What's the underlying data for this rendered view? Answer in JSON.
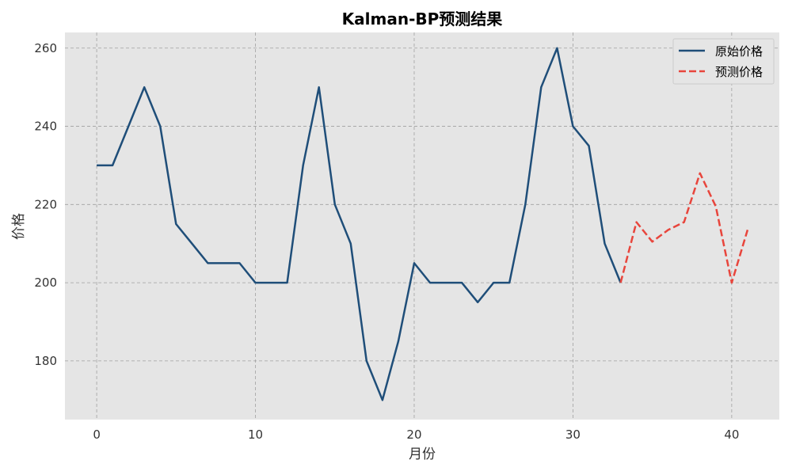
{
  "chart_data": {
    "type": "line",
    "title": "Kalman-BP预测结果",
    "xlabel": "月份",
    "ylabel": "价格",
    "xlim": [
      -2,
      43
    ],
    "ylim": [
      165,
      264
    ],
    "xticks": [
      0,
      10,
      20,
      30,
      40
    ],
    "yticks": [
      180,
      200,
      220,
      240,
      260
    ],
    "grid": true,
    "legend_position": "top-right",
    "series": [
      {
        "name": "原始价格",
        "color": "#1f4e79",
        "style": "solid",
        "x": [
          0,
          1,
          2,
          3,
          4,
          5,
          6,
          7,
          8,
          9,
          10,
          11,
          12,
          13,
          14,
          15,
          16,
          17,
          18,
          19,
          20,
          21,
          22,
          23,
          24,
          25,
          26,
          27,
          28,
          29,
          30,
          31,
          32,
          33
        ],
        "values": [
          230,
          230,
          240,
          250,
          240,
          215,
          210,
          205,
          205,
          205,
          200,
          200,
          200,
          230,
          250,
          220,
          210,
          180,
          170,
          185,
          205,
          200,
          200,
          200,
          195,
          200,
          200,
          220,
          250,
          260,
          240,
          235,
          210,
          200
        ]
      },
      {
        "name": "预测价格",
        "color": "#e8453c",
        "style": "dashed",
        "x": [
          33,
          34,
          35,
          36,
          37,
          38,
          39,
          40,
          41
        ],
        "values": [
          200,
          215.5,
          210.5,
          213.5,
          215.5,
          228,
          219.5,
          200,
          213.5
        ]
      }
    ]
  }
}
